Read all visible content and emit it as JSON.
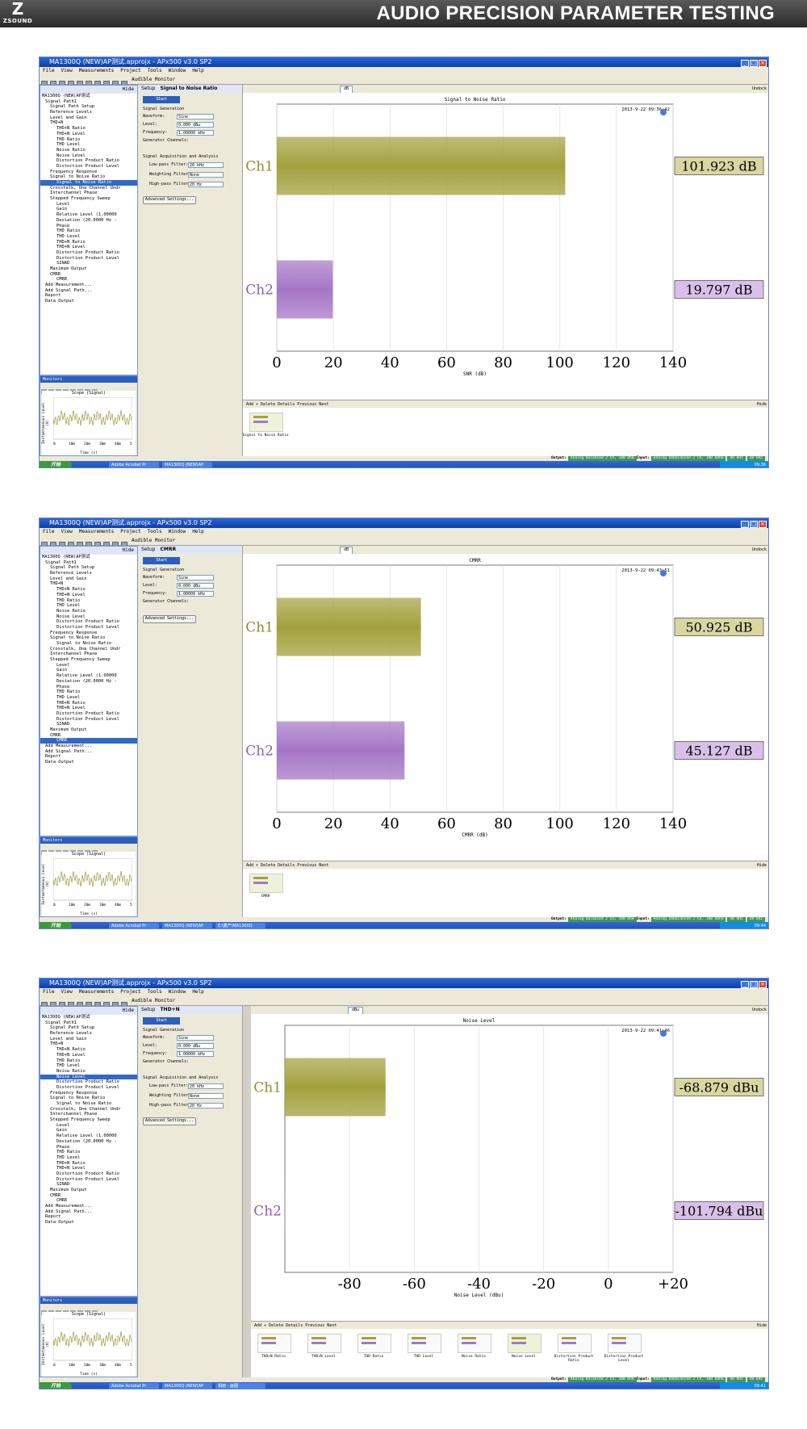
{
  "banner": {
    "logo_mark": "Z",
    "logo_text": "ZSOUND",
    "title": "AUDIO PRECISION PARAMETER TESTING"
  },
  "colors": {
    "ch1": "#a3a13d",
    "ch2": "#a676c6",
    "ch1_label": "#d9d7a0",
    "ch2_label": "#d9c0ea"
  },
  "menu": [
    "File",
    "View",
    "Measurements",
    "Project",
    "Tools",
    "Window",
    "Help"
  ],
  "tree_items": [
    "MA1300Q (NEW)AP测试",
    "Signal Path1",
    "Signal Path Setup",
    "Reference Levels",
    "Level and Gain",
    "THD+N",
    "THD+N Ratio",
    "THD+N Level",
    "THD Ratio",
    "THD Level",
    "Noise Ratio",
    "Noise Level",
    "Distortion Product Ratio",
    "Distortion Product Level",
    "Frequency Response",
    "Signal to Noise Ratio",
    "Signal to Noise Ratio",
    "Crosstalk, One Channel Undr",
    "Interchannel Phase",
    "Stepped Frequency Sweep",
    "Level",
    "Gain",
    "Relative Level (1.00000",
    "Deviation (20.0000 Hz -",
    "Phase",
    "THD Ratio",
    "THD Level",
    "THD+N Ratio",
    "THD+N Level",
    "Distortion Product Ratio",
    "Distortion Product Level",
    "SINAD",
    "Maximum Output",
    "CMRR",
    "CMRR",
    "Add Measurement...",
    "Add Signal Path...",
    "Report",
    "Data Output"
  ],
  "setup": {
    "start": "Start",
    "signal_generation": "Signal Generation",
    "waveform_label": "Waveform:",
    "waveform": "Sine",
    "level_label": "Level:",
    "level": "0.000 dBu",
    "frequency_label": "Frequency:",
    "frequency": "1.00000 kHz",
    "generator_channels": "Generator Channels:",
    "acq_label": "Signal Acquisition and Analysis",
    "lowpass_label": "Low-pass Filter:",
    "lowpass": "20 kHz",
    "weighting_label": "Weighting Filter:",
    "weighting": "None",
    "highpass_label": "High-pass Filter:",
    "highpass": "20 Hz",
    "advanced": "Advanced Settings..."
  },
  "monitor": {
    "title": "Monitors",
    "scope_title": "Scope (Signal)",
    "ylabel": "Instantaneous Level (V)",
    "xlabel": "Time (s)",
    "yticks": [
      "+15m",
      "+10m",
      "+5m",
      "0",
      "-5m",
      "-10m",
      "-15m"
    ],
    "xticks": [
      "0",
      "10m",
      "20m",
      "30m",
      "40m",
      "50m"
    ]
  },
  "common": {
    "audible_monitor": "Audible Monitor",
    "undock": "Undock",
    "hide": "Hide",
    "setup": "Setup",
    "graph_tools": "Add ▾  Delete  Details  Previous  Next",
    "output_label": "Output:",
    "input_label": "Input:",
    "output_chip": "Analog Balanced 2 Ch, 100 Ohm",
    "input_chip": "Analog Unbalanced 2 Ch, 100 kOhm",
    "rate1": "48 kHz",
    "rate2": "48 kHz",
    "taskbar_start": "开始",
    "task_acrobat": "Adobe Acrobat Pr",
    "task_ma": "MA1300Q (NEW)AP"
  },
  "shots": [
    {
      "window_title": "MA1300Q (NEW)AP测试.approjx - APx500 v3.0 SP2",
      "setup_tab": "Signal to Noise Ratio",
      "unit": "dB",
      "task_extra": "",
      "clock": "09:36",
      "thumbs": [
        "Signal to Noise Ratio"
      ],
      "thumb_sel": 0,
      "chart_data": {
        "type": "bar",
        "orientation": "horizontal",
        "title": "Signal to Noise Ratio",
        "timestamp": "2013-9-22 09:36:42",
        "categories": [
          "Ch1",
          "Ch2"
        ],
        "values": [
          101.923,
          19.797
        ],
        "value_labels": [
          "101.923 dB",
          "19.797 dB"
        ],
        "xlabel": "SNR (dB)",
        "xlim": [
          0,
          140
        ],
        "xticks": [
          "0",
          "20",
          "40",
          "60",
          "80",
          "100",
          "120",
          "140"
        ],
        "xtick_values": [
          0,
          20,
          40,
          60,
          80,
          100,
          120,
          140
        ],
        "grid": true
      }
    },
    {
      "window_title": "MA1300Q (NEW)AP测试.approjx - APx500 v3.0 SP2",
      "setup_tab": "CMRR",
      "unit": "dB",
      "task_extra": "E:\\量产\\MA1300Q",
      "clock": "09:44",
      "thumbs": [
        "CMRR"
      ],
      "thumb_sel": 0,
      "chart_data": {
        "type": "bar",
        "orientation": "horizontal",
        "title": "CMRR",
        "timestamp": "2013-9-22 09:43:51",
        "categories": [
          "Ch1",
          "Ch2"
        ],
        "values": [
          50.925,
          45.127
        ],
        "value_labels": [
          "50.925 dB",
          "45.127 dB"
        ],
        "xlabel": "CMRR (dB)",
        "xlim": [
          0,
          140
        ],
        "xticks": [
          "0",
          "20",
          "40",
          "60",
          "80",
          "100",
          "120",
          "140"
        ],
        "xtick_values": [
          0,
          20,
          40,
          60,
          80,
          100,
          120,
          140
        ],
        "grid": true
      }
    },
    {
      "window_title": "MA1300Q (NEW)AP测试.approjx - APx500 v3.0 SP2",
      "setup_tab": "THD+N",
      "unit": "dBu",
      "task_extra": "相册 - 画图",
      "clock": "09:41",
      "thumbs": [
        "THD+N Ratio",
        "THD+N Level",
        "THD Ratio",
        "THD Level",
        "Noise Ratio",
        "Noise Level",
        "Distortion Product Ratio",
        "Distortion Product Level"
      ],
      "thumb_sel": 5,
      "chart_data": {
        "type": "bar",
        "orientation": "horizontal",
        "title": "Noise Level",
        "timestamp": "2013-9-22 09:41:46",
        "categories": [
          "Ch1",
          "Ch2"
        ],
        "values": [
          -68.879,
          -101.794
        ],
        "value_labels": [
          "-68.879 dBu",
          "-101.794 dBu"
        ],
        "xlabel": "Noise Level (dBu)",
        "xlim": [
          -100,
          20
        ],
        "xticks": [
          "-80",
          "-60",
          "-40",
          "-20",
          "0",
          "+20"
        ],
        "xtick_values": [
          -80,
          -60,
          -40,
          -20,
          0,
          20
        ],
        "grid": true
      }
    }
  ]
}
